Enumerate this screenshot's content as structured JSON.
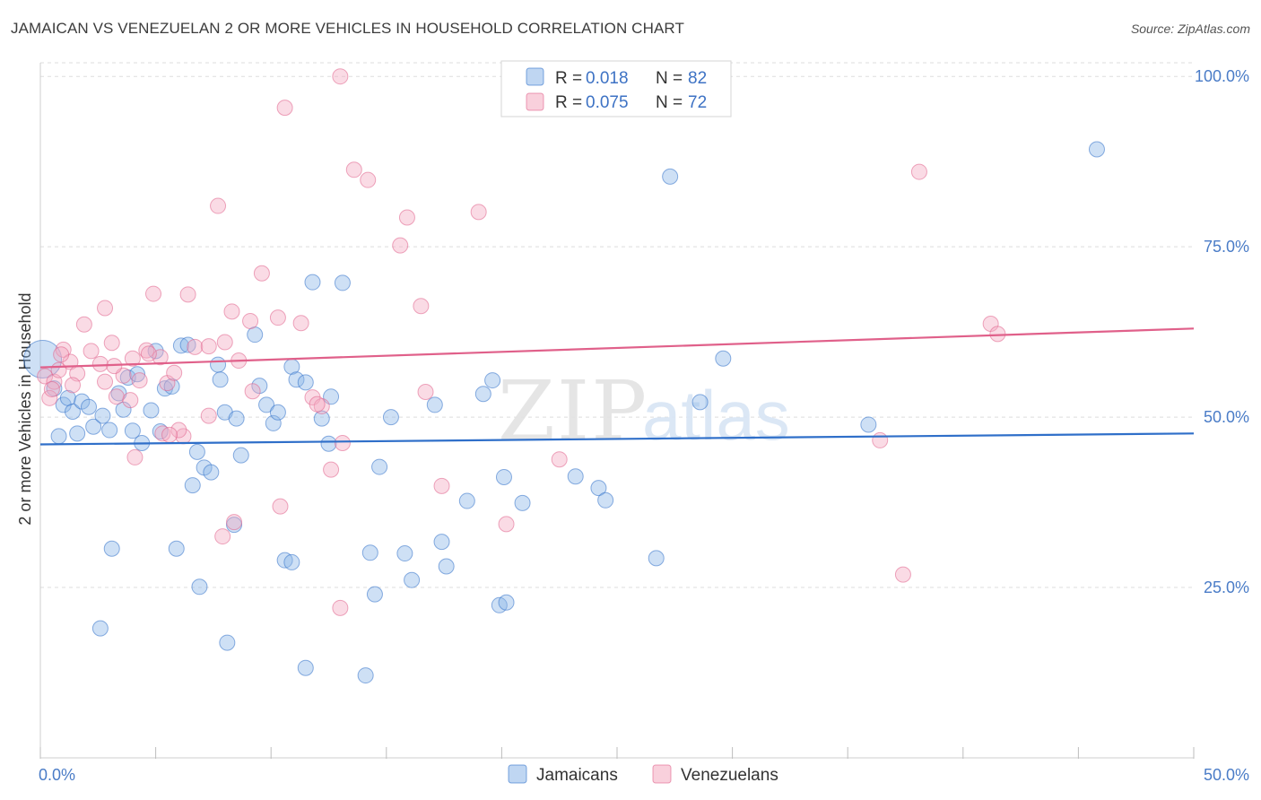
{
  "chart_data": {
    "type": "scatter",
    "title": "JAMAICAN VS VENEZUELAN 2 OR MORE VEHICLES IN HOUSEHOLD CORRELATION CHART",
    "source": "Source: ZipAtlas.com",
    "xlabel": "",
    "ylabel": "2 or more Vehicles in Household",
    "xlim": [
      0,
      50
    ],
    "ylim": [
      0,
      102
    ],
    "x_tick_labels": [
      "0.0%",
      "50.0%"
    ],
    "y_ticks": [
      25,
      50,
      75,
      100
    ],
    "y_tick_labels": [
      "25.0%",
      "50.0%",
      "75.0%",
      "100.0%"
    ],
    "watermark": "ZIPatlas",
    "colors": {
      "jamaicans": "#8ab4e8",
      "jamaicans_line": "#2f6fc9",
      "venezuelans": "#f4a9c0",
      "venezuelans_line": "#e0608a"
    },
    "legend": {
      "rows": [
        {
          "r_label": "R =",
          "r_value": "0.018",
          "n_label": "N =",
          "n_value": "82"
        },
        {
          "r_label": "R =",
          "r_value": "0.075",
          "n_label": "N =",
          "n_value": "72"
        }
      ]
    },
    "series": [
      {
        "name": "Jamaicans",
        "trend": {
          "x": [
            0,
            50
          ],
          "y": [
            46.0,
            47.6
          ]
        },
        "points": [
          [
            0.1,
            58.5
          ],
          [
            0.6,
            54.2
          ],
          [
            0.8,
            47.2
          ],
          [
            1.0,
            51.8
          ],
          [
            1.2,
            52.8
          ],
          [
            1.4,
            50.8
          ],
          [
            1.6,
            47.6
          ],
          [
            1.8,
            52.3
          ],
          [
            2.1,
            51.5
          ],
          [
            2.3,
            48.6
          ],
          [
            2.7,
            50.2
          ],
          [
            3.0,
            48.1
          ],
          [
            3.4,
            53.5
          ],
          [
            3.8,
            55.8
          ],
          [
            4.0,
            48.0
          ],
          [
            4.4,
            46.2
          ],
          [
            4.2,
            56.3
          ],
          [
            4.8,
            51.0
          ],
          [
            5.0,
            59.7
          ],
          [
            5.2,
            47.9
          ],
          [
            5.4,
            54.2
          ],
          [
            5.7,
            54.5
          ],
          [
            6.1,
            60.5
          ],
          [
            6.4,
            60.6
          ],
          [
            6.8,
            44.9
          ],
          [
            7.1,
            42.6
          ],
          [
            7.4,
            41.9
          ],
          [
            7.7,
            57.7
          ],
          [
            7.8,
            55.5
          ],
          [
            8.0,
            50.7
          ],
          [
            8.5,
            49.8
          ],
          [
            8.7,
            44.4
          ],
          [
            9.3,
            62.1
          ],
          [
            9.5,
            54.6
          ],
          [
            9.8,
            51.8
          ],
          [
            10.1,
            49.1
          ],
          [
            10.3,
            50.7
          ],
          [
            10.9,
            57.4
          ],
          [
            11.1,
            55.5
          ],
          [
            11.5,
            55.1
          ],
          [
            11.8,
            69.8
          ],
          [
            12.2,
            49.8
          ],
          [
            12.5,
            46.1
          ],
          [
            12.6,
            53.0
          ],
          [
            13.1,
            69.7
          ],
          [
            14.7,
            42.7
          ],
          [
            15.2,
            50.0
          ],
          [
            17.1,
            51.8
          ],
          [
            19.2,
            53.4
          ],
          [
            19.6,
            55.4
          ],
          [
            20.1,
            41.2
          ],
          [
            20.9,
            37.4
          ],
          [
            18.5,
            37.7
          ],
          [
            23.2,
            41.3
          ],
          [
            24.2,
            39.6
          ],
          [
            24.5,
            37.8
          ],
          [
            26.7,
            29.3
          ],
          [
            27.3,
            85.3
          ],
          [
            28.6,
            52.2
          ],
          [
            29.6,
            58.6
          ],
          [
            35.9,
            48.9
          ],
          [
            45.8,
            89.3
          ],
          [
            2.6,
            19.0
          ],
          [
            3.1,
            30.7
          ],
          [
            6.6,
            40.0
          ],
          [
            6.9,
            25.1
          ],
          [
            8.1,
            16.9
          ],
          [
            8.4,
            34.2
          ],
          [
            10.6,
            29.0
          ],
          [
            10.9,
            28.7
          ],
          [
            11.5,
            13.2
          ],
          [
            14.1,
            12.1
          ],
          [
            14.3,
            30.1
          ],
          [
            14.5,
            24.0
          ],
          [
            15.8,
            30.0
          ],
          [
            16.1,
            26.1
          ],
          [
            17.4,
            31.7
          ],
          [
            17.6,
            28.1
          ],
          [
            19.9,
            22.4
          ],
          [
            20.2,
            22.8
          ],
          [
            5.9,
            30.7
          ],
          [
            3.6,
            51.1
          ]
        ]
      },
      {
        "name": "Venezuelans",
        "trend": {
          "x": [
            0,
            50
          ],
          "y": [
            57.3,
            63.0
          ]
        },
        "points": [
          [
            0.2,
            56.0
          ],
          [
            0.4,
            52.8
          ],
          [
            0.6,
            55.2
          ],
          [
            0.8,
            56.9
          ],
          [
            1.0,
            59.9
          ],
          [
            1.3,
            58.1
          ],
          [
            1.6,
            56.4
          ],
          [
            1.9,
            63.6
          ],
          [
            2.2,
            59.7
          ],
          [
            2.6,
            57.8
          ],
          [
            2.8,
            66.0
          ],
          [
            3.1,
            60.9
          ],
          [
            3.3,
            53.0
          ],
          [
            3.6,
            56.1
          ],
          [
            4.0,
            58.6
          ],
          [
            4.3,
            55.4
          ],
          [
            4.6,
            59.8
          ],
          [
            4.9,
            68.1
          ],
          [
            5.2,
            58.8
          ],
          [
            5.5,
            55.0
          ],
          [
            5.8,
            56.5
          ],
          [
            6.2,
            47.2
          ],
          [
            6.4,
            68.0
          ],
          [
            6.7,
            60.3
          ],
          [
            7.3,
            50.2
          ],
          [
            7.7,
            81.0
          ],
          [
            8.0,
            61.0
          ],
          [
            8.3,
            65.5
          ],
          [
            8.6,
            58.3
          ],
          [
            9.1,
            64.1
          ],
          [
            9.6,
            71.1
          ],
          [
            10.3,
            64.6
          ],
          [
            10.6,
            95.4
          ],
          [
            11.3,
            63.8
          ],
          [
            11.8,
            52.9
          ],
          [
            12.2,
            51.6
          ],
          [
            12.6,
            42.3
          ],
          [
            13.0,
            100.0
          ],
          [
            13.6,
            86.3
          ],
          [
            14.2,
            84.8
          ],
          [
            15.6,
            75.2
          ],
          [
            15.9,
            79.3
          ],
          [
            16.5,
            66.3
          ],
          [
            16.7,
            53.7
          ],
          [
            17.4,
            39.9
          ],
          [
            19.0,
            80.1
          ],
          [
            20.2,
            34.3
          ],
          [
            22.5,
            43.8
          ],
          [
            36.4,
            46.6
          ],
          [
            38.1,
            86.0
          ],
          [
            41.2,
            63.7
          ],
          [
            41.5,
            62.2
          ],
          [
            37.4,
            26.9
          ],
          [
            13.0,
            22.0
          ],
          [
            10.4,
            36.9
          ],
          [
            8.4,
            34.6
          ],
          [
            7.9,
            32.5
          ],
          [
            5.3,
            47.6
          ],
          [
            4.1,
            44.1
          ],
          [
            6.0,
            48.1
          ],
          [
            3.9,
            52.5
          ],
          [
            2.8,
            55.2
          ],
          [
            1.4,
            54.7
          ],
          [
            0.5,
            54.1
          ],
          [
            13.1,
            46.2
          ],
          [
            12.0,
            51.9
          ],
          [
            9.2,
            53.8
          ],
          [
            7.3,
            60.4
          ],
          [
            5.6,
            47.4
          ],
          [
            4.7,
            59.3
          ],
          [
            3.2,
            57.5
          ],
          [
            0.9,
            59.2
          ]
        ]
      }
    ]
  }
}
